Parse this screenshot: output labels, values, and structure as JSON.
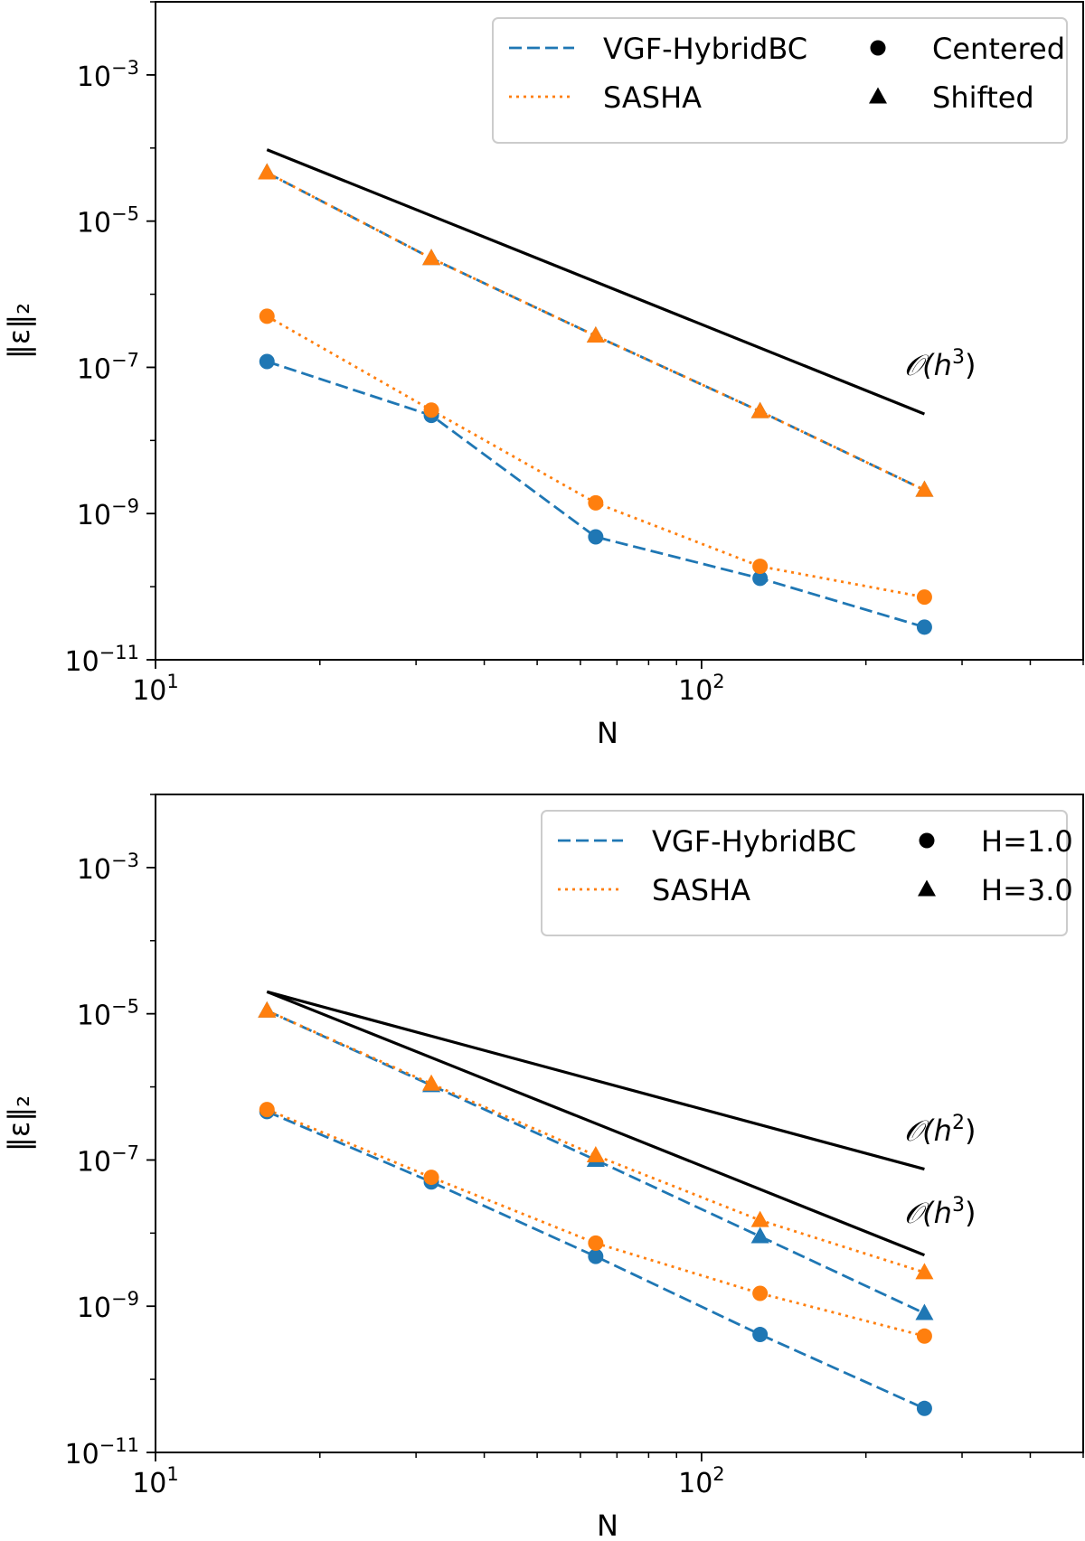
{
  "colors": {
    "vgf": "#1f77b4",
    "sasha": "#ff7f0e",
    "reference": "#000000",
    "legend_border": "#cccccc"
  },
  "chart_data": [
    {
      "type": "line",
      "xscale": "log",
      "yscale": "log",
      "xlabel": "N",
      "ylabel": "‖ε‖₂",
      "xlim": [
        10,
        500
      ],
      "ylim": [
        1e-11,
        0.01
      ],
      "xticks": [
        {
          "value": 10,
          "base": "10",
          "exp": "1"
        },
        {
          "value": 100,
          "base": "10",
          "exp": "2"
        }
      ],
      "yticks": [
        {
          "value": 0.001,
          "base": "10",
          "exp": "−3"
        },
        {
          "value": 1e-05,
          "base": "10",
          "exp": "−5"
        },
        {
          "value": 1e-07,
          "base": "10",
          "exp": "−7"
        },
        {
          "value": 1e-09,
          "base": "10",
          "exp": "−9"
        },
        {
          "value": 1e-11,
          "base": "10",
          "exp": "−11"
        }
      ],
      "x": [
        16,
        32,
        64,
        128,
        256
      ],
      "series": [
        {
          "name": "VGF-HybridBC",
          "variant": "Centered",
          "marker": "circle",
          "style": "dashed",
          "color_key": "vgf",
          "values": [
            1.2e-07,
            2.2e-08,
            4.8e-10,
            1.3e-10,
            2.8e-11
          ]
        },
        {
          "name": "SASHA",
          "variant": "Centered",
          "marker": "circle",
          "style": "dotted",
          "color_key": "sasha",
          "values": [
            5e-07,
            2.6e-08,
            1.4e-09,
            1.9e-10,
            7.2e-11
          ]
        },
        {
          "name": "VGF-HybridBC",
          "variant": "Shifted",
          "marker": "triangle",
          "style": "dashed",
          "color_key": "vgf",
          "values": [
            4.6e-05,
            3.1e-06,
            2.7e-07,
            2.5e-08,
            2.1e-09
          ]
        },
        {
          "name": "SASHA",
          "variant": "Shifted",
          "marker": "triangle",
          "style": "dotted",
          "color_key": "sasha",
          "values": [
            4.6e-05,
            3.1e-06,
            2.7e-07,
            2.5e-08,
            2.1e-09
          ]
        }
      ],
      "reference_lines": [
        {
          "x": [
            16,
            256
          ],
          "values": [
            9.5e-05,
            2.3e-08
          ],
          "label_prefix": "𝒪(h",
          "label_exp": "3",
          "label_suffix": ")"
        }
      ],
      "legend": {
        "location": "top-right",
        "lines": [
          {
            "label": "VGF-HybridBC",
            "color_key": "vgf",
            "style": "dashed"
          },
          {
            "label": "SASHA",
            "color_key": "sasha",
            "style": "dotted"
          }
        ],
        "markers": [
          {
            "label": "Centered",
            "marker": "circle"
          },
          {
            "label": "Shifted",
            "marker": "triangle"
          }
        ]
      }
    },
    {
      "type": "line",
      "xscale": "log",
      "yscale": "log",
      "xlabel": "N",
      "ylabel": "‖ε‖₂",
      "xlim": [
        10,
        500
      ],
      "ylim": [
        1e-11,
        0.01
      ],
      "xticks": [
        {
          "value": 10,
          "base": "10",
          "exp": "1"
        },
        {
          "value": 100,
          "base": "10",
          "exp": "2"
        }
      ],
      "yticks": [
        {
          "value": 0.001,
          "base": "10",
          "exp": "−3"
        },
        {
          "value": 1e-05,
          "base": "10",
          "exp": "−5"
        },
        {
          "value": 1e-07,
          "base": "10",
          "exp": "−7"
        },
        {
          "value": 1e-09,
          "base": "10",
          "exp": "−9"
        },
        {
          "value": 1e-11,
          "base": "10",
          "exp": "−11"
        }
      ],
      "x": [
        16,
        32,
        64,
        128,
        256
      ],
      "series": [
        {
          "name": "VGF-HybridBC",
          "variant": "H=1.0",
          "marker": "circle",
          "style": "dashed",
          "color_key": "vgf",
          "values": [
            4.6e-07,
            5e-08,
            4.8e-09,
            4.1e-10,
            4e-11
          ]
        },
        {
          "name": "SASHA",
          "variant": "H=1.0",
          "marker": "circle",
          "style": "dotted",
          "color_key": "sasha",
          "values": [
            4.9e-07,
            5.8e-08,
            7.3e-09,
            1.5e-09,
            3.9e-10
          ]
        },
        {
          "name": "VGF-HybridBC",
          "variant": "H=3.0",
          "marker": "triangle",
          "style": "dashed",
          "color_key": "vgf",
          "values": [
            1.1e-05,
            1.05e-06,
            1e-07,
            9e-09,
            8e-10
          ]
        },
        {
          "name": "SASHA",
          "variant": "H=3.0",
          "marker": "triangle",
          "style": "dotted",
          "color_key": "sasha",
          "values": [
            1.1e-05,
            1.1e-06,
            1.15e-07,
            1.5e-08,
            2.9e-09
          ]
        }
      ],
      "reference_lines": [
        {
          "x": [
            16,
            256
          ],
          "values": [
            2e-05,
            7.5e-08
          ],
          "label_prefix": "𝒪(h",
          "label_exp": "2",
          "label_suffix": ")"
        },
        {
          "x": [
            16,
            256
          ],
          "values": [
            2e-05,
            5e-09
          ],
          "label_prefix": "𝒪(h",
          "label_exp": "3",
          "label_suffix": ")"
        }
      ],
      "legend": {
        "location": "top-right",
        "lines": [
          {
            "label": "VGF-HybridBC",
            "color_key": "vgf",
            "style": "dashed"
          },
          {
            "label": "SASHA",
            "color_key": "sasha",
            "style": "dotted"
          }
        ],
        "markers": [
          {
            "label": "H=1.0",
            "marker": "circle"
          },
          {
            "label": "H=3.0",
            "marker": "triangle"
          }
        ]
      }
    }
  ]
}
